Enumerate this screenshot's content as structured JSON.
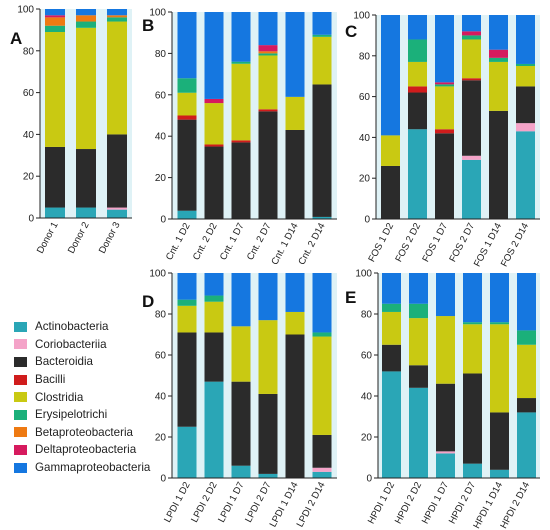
{
  "legend": {
    "title": "",
    "items": [
      {
        "name": "Actinobacteria",
        "color": "#2aa6b6"
      },
      {
        "name": "Coriobacteriia",
        "color": "#f4a3c8"
      },
      {
        "name": "Bacteroidia",
        "color": "#2b2b2b"
      },
      {
        "name": "Bacilli",
        "color": "#d01c1c"
      },
      {
        "name": "Clostridia",
        "color": "#c9c912"
      },
      {
        "name": "Erysipelotrichi",
        "color": "#1bb07a"
      },
      {
        "name": "Betaproteobacteria",
        "color": "#ee7a12"
      },
      {
        "name": "Deltaproteobacteria",
        "color": "#d61a5e"
      },
      {
        "name": "Gammaproteobacteria",
        "color": "#1577e0"
      }
    ]
  },
  "chart_data": [
    {
      "panel": "A",
      "type": "bar",
      "stacked": true,
      "ylim": [
        0,
        100
      ],
      "yticks": [
        0,
        20,
        40,
        60,
        80,
        100
      ],
      "categories": [
        "Donor 1",
        "Donor 2",
        "Donor 3"
      ],
      "series": [
        {
          "name": "Actinobacteria",
          "values": [
            5,
            5,
            4
          ]
        },
        {
          "name": "Coriobacteriia",
          "values": [
            0,
            0,
            1
          ]
        },
        {
          "name": "Bacteroidia",
          "values": [
            29,
            28,
            35
          ]
        },
        {
          "name": "Bacilli",
          "values": [
            0,
            0,
            0
          ]
        },
        {
          "name": "Clostridia",
          "values": [
            55,
            58,
            54
          ]
        },
        {
          "name": "Erysipelotrichi",
          "values": [
            3,
            3,
            2
          ]
        },
        {
          "name": "Betaproteobacteria",
          "values": [
            4,
            3,
            1
          ]
        },
        {
          "name": "Deltaproteobacteria",
          "values": [
            1,
            0,
            0
          ]
        },
        {
          "name": "Gammaproteobacteria",
          "values": [
            3,
            3,
            3
          ]
        }
      ]
    },
    {
      "panel": "B",
      "type": "bar",
      "stacked": true,
      "ylim": [
        0,
        100
      ],
      "yticks": [
        0,
        20,
        40,
        60,
        80,
        100
      ],
      "categories": [
        "Cnt. 1 D2",
        "Cnt. 2 D2",
        "Cnt. 1 D7",
        "Cnt. 2 D7",
        "Cnt. 1 D14",
        "Cnt. 2 D14"
      ],
      "series": [
        {
          "name": "Actinobacteria",
          "values": [
            4,
            0,
            0,
            0,
            0,
            1
          ]
        },
        {
          "name": "Coriobacteriia",
          "values": [
            0,
            0,
            0,
            0,
            0,
            0
          ]
        },
        {
          "name": "Bacteroidia",
          "values": [
            44,
            35,
            37,
            52,
            43,
            64
          ]
        },
        {
          "name": "Bacilli",
          "values": [
            2,
            1,
            1,
            1,
            0,
            0
          ]
        },
        {
          "name": "Clostridia",
          "values": [
            11,
            20,
            37,
            26,
            16,
            23
          ]
        },
        {
          "name": "Erysipelotrichi",
          "values": [
            7,
            0,
            1,
            1,
            0,
            1
          ]
        },
        {
          "name": "Betaproteobacteria",
          "values": [
            0,
            0,
            0,
            1,
            0,
            0
          ]
        },
        {
          "name": "Deltaproteobacteria",
          "values": [
            0,
            2,
            0,
            3,
            0,
            0
          ]
        },
        {
          "name": "Gammaproteobacteria",
          "values": [
            32,
            42,
            24,
            16,
            41,
            11
          ]
        }
      ]
    },
    {
      "panel": "C",
      "type": "bar",
      "stacked": true,
      "ylim": [
        0,
        100
      ],
      "yticks": [
        0,
        20,
        40,
        60,
        80,
        100
      ],
      "categories": [
        "FOS 1 D2",
        "FOS 2 D2",
        "FOS 1 D7",
        "FOS 2 D7",
        "FOS 1 D14",
        "FOS 2 D14"
      ],
      "series": [
        {
          "name": "Actinobacteria",
          "values": [
            0,
            44,
            0,
            29,
            0,
            43
          ]
        },
        {
          "name": "Coriobacteriia",
          "values": [
            0,
            0,
            0,
            2,
            0,
            4
          ]
        },
        {
          "name": "Bacteroidia",
          "values": [
            26,
            18,
            42,
            37,
            53,
            18
          ]
        },
        {
          "name": "Bacilli",
          "values": [
            0,
            3,
            2,
            1,
            0,
            0
          ]
        },
        {
          "name": "Clostridia",
          "values": [
            15,
            12,
            21,
            19,
            24,
            10
          ]
        },
        {
          "name": "Erysipelotrichi",
          "values": [
            0,
            11,
            1,
            2,
            2,
            1
          ]
        },
        {
          "name": "Betaproteobacteria",
          "values": [
            0,
            0,
            0,
            0,
            0,
            0
          ]
        },
        {
          "name": "Deltaproteobacteria",
          "values": [
            0,
            0,
            1,
            2,
            4,
            0
          ]
        },
        {
          "name": "Gammaproteobacteria",
          "values": [
            59,
            12,
            33,
            8,
            17,
            24
          ]
        }
      ]
    },
    {
      "panel": "D",
      "type": "bar",
      "stacked": true,
      "ylim": [
        0,
        100
      ],
      "yticks": [
        0,
        20,
        40,
        60,
        80,
        100
      ],
      "categories": [
        "LPDI 1 D2",
        "LPDI 2 D2",
        "LPDI 1 D7",
        "LPDI 2 D7",
        "LPDI 1 D14",
        "LPDI 2 D14"
      ],
      "series": [
        {
          "name": "Actinobacteria",
          "values": [
            25,
            47,
            6,
            2,
            0,
            3
          ]
        },
        {
          "name": "Coriobacteriia",
          "values": [
            0,
            0,
            0,
            0,
            0,
            2
          ]
        },
        {
          "name": "Bacteroidia",
          "values": [
            46,
            24,
            41,
            39,
            70,
            16
          ]
        },
        {
          "name": "Bacilli",
          "values": [
            0,
            0,
            0,
            0,
            0,
            0
          ]
        },
        {
          "name": "Clostridia",
          "values": [
            13,
            15,
            27,
            36,
            11,
            48
          ]
        },
        {
          "name": "Erysipelotrichi",
          "values": [
            3,
            3,
            0,
            0,
            0,
            2
          ]
        },
        {
          "name": "Betaproteobacteria",
          "values": [
            0,
            0,
            0,
            0,
            0,
            0
          ]
        },
        {
          "name": "Deltaproteobacteria",
          "values": [
            0,
            0,
            0,
            0,
            0,
            0
          ]
        },
        {
          "name": "Gammaproteobacteria",
          "values": [
            13,
            11,
            26,
            23,
            19,
            29
          ]
        }
      ]
    },
    {
      "panel": "E",
      "type": "bar",
      "stacked": true,
      "ylim": [
        0,
        100
      ],
      "yticks": [
        0,
        20,
        40,
        60,
        80,
        100
      ],
      "categories": [
        "HPDI 1 D2",
        "HPDI 2 D2",
        "HPDI 1 D7",
        "HPDI 2 D7",
        "HPDI 1 D14",
        "HPDI 2 D14"
      ],
      "series": [
        {
          "name": "Actinobacteria",
          "values": [
            52,
            44,
            12,
            7,
            4,
            32
          ]
        },
        {
          "name": "Coriobacteriia",
          "values": [
            0,
            0,
            1,
            0,
            0,
            0
          ]
        },
        {
          "name": "Bacteroidia",
          "values": [
            13,
            11,
            33,
            44,
            28,
            7
          ]
        },
        {
          "name": "Bacilli",
          "values": [
            0,
            0,
            0,
            0,
            0,
            0
          ]
        },
        {
          "name": "Clostridia",
          "values": [
            16,
            23,
            33,
            24,
            43,
            26
          ]
        },
        {
          "name": "Erysipelotrichi",
          "values": [
            4,
            7,
            0,
            1,
            1,
            7
          ]
        },
        {
          "name": "Betaproteobacteria",
          "values": [
            0,
            0,
            0,
            0,
            0,
            0
          ]
        },
        {
          "name": "Deltaproteobacteria",
          "values": [
            0,
            0,
            0,
            0,
            0,
            0
          ]
        },
        {
          "name": "Gammaproteobacteria",
          "values": [
            15,
            15,
            21,
            24,
            24,
            28
          ]
        }
      ]
    }
  ]
}
